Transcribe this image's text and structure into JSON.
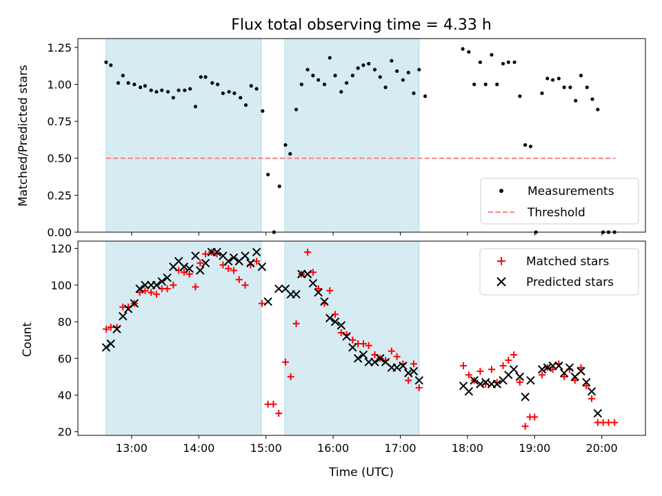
{
  "colors": {
    "shade": "#add8e6",
    "threshold": "#ff7f7f",
    "matched": "#ff0000",
    "predicted": "#000000",
    "measurement": "#000000"
  },
  "chart_data": [
    {
      "type": "scatter",
      "title": "Flux total observing time = 4.33 h",
      "xlabel": "",
      "ylabel": "Matched/Predicted stars",
      "xlim": [
        12.2,
        20.65
      ],
      "ylim": [
        0.0,
        1.31
      ],
      "yticks": [
        0.0,
        0.25,
        0.5,
        0.75,
        1.0,
        1.25
      ],
      "ytick_labels": [
        "0.00",
        "0.25",
        "0.50",
        "0.75",
        "1.00",
        "1.25"
      ],
      "xticks": [
        13,
        14,
        15,
        16,
        17,
        18,
        19,
        20
      ],
      "xtick_labels": [
        "",
        "",
        "",
        "",
        "",
        "",
        "",
        ""
      ],
      "shaded_regions": [
        [
          12.62,
          14.93
        ],
        [
          15.28,
          17.28
        ]
      ],
      "threshold": {
        "name": "Threshold",
        "y": 0.5,
        "x_range": [
          12.62,
          20.2
        ]
      },
      "legend_position": "lower-right",
      "series": [
        {
          "name": "Measurements",
          "marker": "dot",
          "points": [
            [
              12.62,
              1.15
            ],
            [
              12.69,
              1.13
            ],
            [
              12.8,
              1.01
            ],
            [
              12.87,
              1.06
            ],
            [
              12.95,
              1.01
            ],
            [
              13.04,
              1.0
            ],
            [
              13.13,
              0.98
            ],
            [
              13.2,
              0.99
            ],
            [
              13.29,
              0.96
            ],
            [
              13.37,
              0.95
            ],
            [
              13.45,
              0.96
            ],
            [
              13.54,
              0.95
            ],
            [
              13.62,
              0.91
            ],
            [
              13.7,
              0.96
            ],
            [
              13.79,
              0.96
            ],
            [
              13.87,
              0.97
            ],
            [
              13.95,
              0.85
            ],
            [
              14.03,
              1.05
            ],
            [
              14.1,
              1.05
            ],
            [
              14.2,
              1.01
            ],
            [
              14.28,
              1.0
            ],
            [
              14.36,
              0.94
            ],
            [
              14.45,
              0.95
            ],
            [
              14.53,
              0.94
            ],
            [
              14.62,
              0.91
            ],
            [
              14.7,
              0.86
            ],
            [
              14.78,
              0.99
            ],
            [
              14.86,
              0.97
            ],
            [
              14.95,
              0.82
            ],
            [
              15.03,
              0.39
            ],
            [
              15.12,
              0.0
            ],
            [
              15.2,
              0.31
            ],
            [
              15.29,
              0.59
            ],
            [
              15.36,
              0.53
            ],
            [
              15.45,
              0.83
            ],
            [
              15.53,
              1.0
            ],
            [
              15.62,
              1.1
            ],
            [
              15.7,
              1.06
            ],
            [
              15.78,
              1.03
            ],
            [
              15.87,
              1.0
            ],
            [
              15.95,
              1.18
            ],
            [
              16.03,
              1.06
            ],
            [
              16.12,
              0.95
            ],
            [
              16.2,
              1.01
            ],
            [
              16.29,
              1.06
            ],
            [
              16.37,
              1.11
            ],
            [
              16.45,
              1.13
            ],
            [
              16.53,
              1.14
            ],
            [
              16.62,
              1.1
            ],
            [
              16.7,
              1.05
            ],
            [
              16.78,
              0.98
            ],
            [
              16.87,
              1.16
            ],
            [
              16.95,
              1.09
            ],
            [
              17.04,
              1.03
            ],
            [
              17.12,
              1.08
            ],
            [
              17.2,
              0.94
            ],
            [
              17.28,
              1.1
            ],
            [
              17.37,
              0.92
            ],
            [
              17.93,
              1.24
            ],
            [
              18.02,
              1.22
            ],
            [
              18.1,
              1.0
            ],
            [
              18.19,
              1.15
            ],
            [
              18.27,
              1.0
            ],
            [
              18.36,
              1.2
            ],
            [
              18.44,
              1.0
            ],
            [
              18.53,
              1.14
            ],
            [
              18.61,
              1.15
            ],
            [
              18.7,
              1.15
            ],
            [
              18.78,
              0.92
            ],
            [
              18.86,
              0.59
            ],
            [
              18.94,
              0.58
            ],
            [
              19.02,
              0.0
            ],
            [
              19.11,
              0.94
            ],
            [
              19.19,
              1.04
            ],
            [
              19.27,
              1.03
            ],
            [
              19.36,
              1.04
            ],
            [
              19.44,
              0.98
            ],
            [
              19.53,
              0.98
            ],
            [
              19.61,
              0.89
            ],
            [
              19.69,
              1.06
            ],
            [
              19.78,
              0.98
            ],
            [
              19.86,
              0.9
            ],
            [
              19.94,
              0.83
            ],
            [
              20.02,
              0.0
            ],
            [
              20.1,
              0.0
            ],
            [
              20.19,
              0.0
            ]
          ]
        }
      ]
    },
    {
      "type": "scatter",
      "title": "",
      "xlabel": "Time (UTC)",
      "ylabel": "Count",
      "xlim": [
        12.2,
        20.65
      ],
      "ylim": [
        18,
        124
      ],
      "yticks": [
        20,
        40,
        60,
        80,
        100,
        120
      ],
      "ytick_labels": [
        "20",
        "40",
        "60",
        "80",
        "100",
        "120"
      ],
      "xticks": [
        13,
        14,
        15,
        16,
        17,
        18,
        19,
        20
      ],
      "xtick_labels": [
        "13:00",
        "14:00",
        "15:00",
        "16:00",
        "17:00",
        "18:00",
        "19:00",
        "20:00"
      ],
      "shaded_regions": [
        [
          12.62,
          14.93
        ],
        [
          15.28,
          17.28
        ]
      ],
      "legend_position": "top-right",
      "series": [
        {
          "name": "Matched stars",
          "marker": "plus",
          "points": [
            [
              12.62,
              76
            ],
            [
              12.69,
              77
            ],
            [
              12.78,
              77
            ],
            [
              12.87,
              88
            ],
            [
              12.95,
              88
            ],
            [
              13.04,
              90
            ],
            [
              13.12,
              96
            ],
            [
              13.2,
              97
            ],
            [
              13.29,
              96
            ],
            [
              13.37,
              95
            ],
            [
              13.45,
              98
            ],
            [
              13.53,
              98
            ],
            [
              13.62,
              100
            ],
            [
              13.7,
              108
            ],
            [
              13.78,
              107
            ],
            [
              13.86,
              106
            ],
            [
              13.95,
              99
            ],
            [
              14.02,
              112
            ],
            [
              14.1,
              117
            ],
            [
              14.19,
              118
            ],
            [
              14.27,
              117
            ],
            [
              14.36,
              111
            ],
            [
              14.44,
              109
            ],
            [
              14.52,
              108
            ],
            [
              14.6,
              103
            ],
            [
              14.69,
              100
            ],
            [
              14.77,
              111
            ],
            [
              14.86,
              113
            ],
            [
              14.94,
              90
            ],
            [
              15.03,
              35
            ],
            [
              15.11,
              35
            ],
            [
              15.19,
              30
            ],
            [
              15.29,
              58
            ],
            [
              15.37,
              50
            ],
            [
              15.45,
              79
            ],
            [
              15.53,
              106
            ],
            [
              15.62,
              118
            ],
            [
              15.7,
              107
            ],
            [
              15.78,
              98
            ],
            [
              15.87,
              90
            ],
            [
              15.95,
              97
            ],
            [
              16.03,
              84
            ],
            [
              16.12,
              74
            ],
            [
              16.2,
              73
            ],
            [
              16.29,
              70
            ],
            [
              16.37,
              68
            ],
            [
              16.45,
              68
            ],
            [
              16.53,
              67
            ],
            [
              16.62,
              62
            ],
            [
              16.7,
              60
            ],
            [
              16.78,
              59
            ],
            [
              16.87,
              64
            ],
            [
              16.95,
              61
            ],
            [
              17.04,
              57
            ],
            [
              17.12,
              48
            ],
            [
              17.2,
              57
            ],
            [
              17.28,
              44
            ],
            [
              17.94,
              56
            ],
            [
              18.02,
              51
            ],
            [
              18.1,
              48
            ],
            [
              18.19,
              53
            ],
            [
              18.27,
              46
            ],
            [
              18.36,
              54
            ],
            [
              18.44,
              47
            ],
            [
              18.53,
              56
            ],
            [
              18.61,
              59
            ],
            [
              18.69,
              62
            ],
            [
              18.78,
              47
            ],
            [
              18.86,
              23
            ],
            [
              18.93,
              28
            ],
            [
              19.0,
              28
            ],
            [
              19.11,
              51
            ],
            [
              19.19,
              55
            ],
            [
              19.27,
              54
            ],
            [
              19.36,
              57
            ],
            [
              19.44,
              50
            ],
            [
              19.52,
              54
            ],
            [
              19.6,
              48
            ],
            [
              19.69,
              55
            ],
            [
              19.77,
              45
            ],
            [
              19.85,
              38
            ],
            [
              19.94,
              25
            ],
            [
              20.02,
              25
            ],
            [
              20.1,
              25
            ],
            [
              20.19,
              25
            ]
          ]
        },
        {
          "name": "Predicted stars",
          "marker": "x",
          "points": [
            [
              12.62,
              66
            ],
            [
              12.69,
              68
            ],
            [
              12.78,
              76
            ],
            [
              12.87,
              83
            ],
            [
              12.95,
              87
            ],
            [
              13.04,
              90
            ],
            [
              13.12,
              98
            ],
            [
              13.2,
              100
            ],
            [
              13.29,
              100
            ],
            [
              13.37,
              100
            ],
            [
              13.45,
              102
            ],
            [
              13.53,
              104
            ],
            [
              13.62,
              110
            ],
            [
              13.7,
              113
            ],
            [
              13.78,
              110
            ],
            [
              13.86,
              109
            ],
            [
              13.95,
              116
            ],
            [
              14.02,
              108
            ],
            [
              14.1,
              112
            ],
            [
              14.19,
              118
            ],
            [
              14.27,
              118
            ],
            [
              14.36,
              116
            ],
            [
              14.44,
              113
            ],
            [
              14.52,
              115
            ],
            [
              14.6,
              113
            ],
            [
              14.69,
              116
            ],
            [
              14.77,
              112
            ],
            [
              14.86,
              118
            ],
            [
              14.94,
              110
            ],
            [
              15.03,
              91
            ],
            [
              15.19,
              98
            ],
            [
              15.29,
              98
            ],
            [
              15.37,
              95
            ],
            [
              15.45,
              95
            ],
            [
              15.53,
              106
            ],
            [
              15.62,
              106
            ],
            [
              15.7,
              101
            ],
            [
              15.78,
              96
            ],
            [
              15.87,
              91
            ],
            [
              15.95,
              82
            ],
            [
              16.03,
              80
            ],
            [
              16.12,
              78
            ],
            [
              16.2,
              72
            ],
            [
              16.29,
              66
            ],
            [
              16.37,
              60
            ],
            [
              16.45,
              62
            ],
            [
              16.53,
              58
            ],
            [
              16.62,
              58
            ],
            [
              16.7,
              60
            ],
            [
              16.78,
              58
            ],
            [
              16.87,
              55
            ],
            [
              16.95,
              55
            ],
            [
              17.04,
              56
            ],
            [
              17.12,
              52
            ],
            [
              17.2,
              53
            ],
            [
              17.28,
              48
            ],
            [
              17.94,
              45
            ],
            [
              18.02,
              42
            ],
            [
              18.1,
              48
            ],
            [
              18.19,
              46
            ],
            [
              18.27,
              47
            ],
            [
              18.36,
              46
            ],
            [
              18.44,
              46
            ],
            [
              18.53,
              48
            ],
            [
              18.61,
              51
            ],
            [
              18.69,
              54
            ],
            [
              18.78,
              50
            ],
            [
              18.86,
              39
            ],
            [
              18.94,
              48
            ],
            [
              19.11,
              54
            ],
            [
              19.19,
              55
            ],
            [
              19.27,
              56
            ],
            [
              19.36,
              56
            ],
            [
              19.44,
              52
            ],
            [
              19.52,
              55
            ],
            [
              19.6,
              50
            ],
            [
              19.69,
              53
            ],
            [
              19.77,
              47
            ],
            [
              19.85,
              42
            ],
            [
              19.94,
              30
            ]
          ]
        }
      ]
    }
  ]
}
